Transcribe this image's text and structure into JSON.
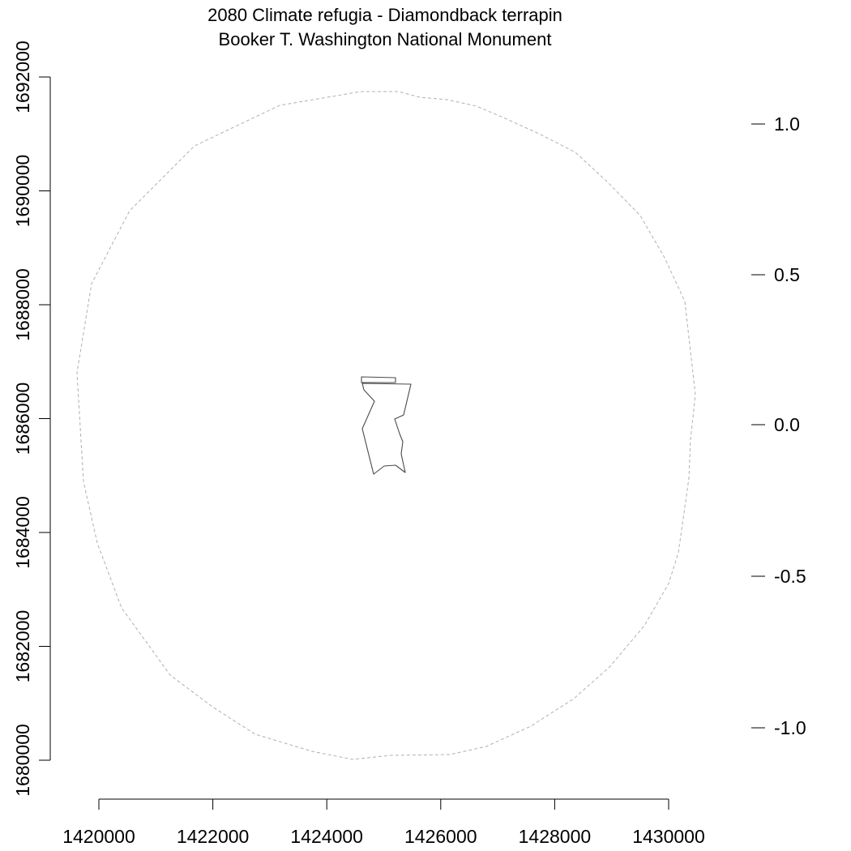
{
  "title": {
    "line1": "2080 Climate refugia - Diamondback terrapin",
    "line2": "Booker T. Washington National Monument"
  },
  "axes": {
    "x_ticks": [
      "1420000",
      "1422000",
      "1424000",
      "1426000",
      "1428000",
      "1430000"
    ],
    "y_ticks": [
      "1680000",
      "1682000",
      "1684000",
      "1686000",
      "1688000",
      "1690000",
      "1692000"
    ],
    "legend_ticks": [
      "-1.0",
      "-0.5",
      "0.0",
      "0.5",
      "1.0"
    ]
  },
  "colors": {
    "buffer_outline": "#b0b0b0",
    "park_outline": "#4a4a4a",
    "axis": "#000000",
    "background": "#ffffff"
  },
  "map_layers": [
    "dashed-buffer-circle",
    "park-boundary-polygon"
  ],
  "chart_data": {
    "type": "map",
    "xlim": [
      1420000,
      1430000
    ],
    "ylim": [
      1680000,
      1692000
    ],
    "legend_range": [
      -1.0,
      1.0
    ],
    "grid": false
  }
}
